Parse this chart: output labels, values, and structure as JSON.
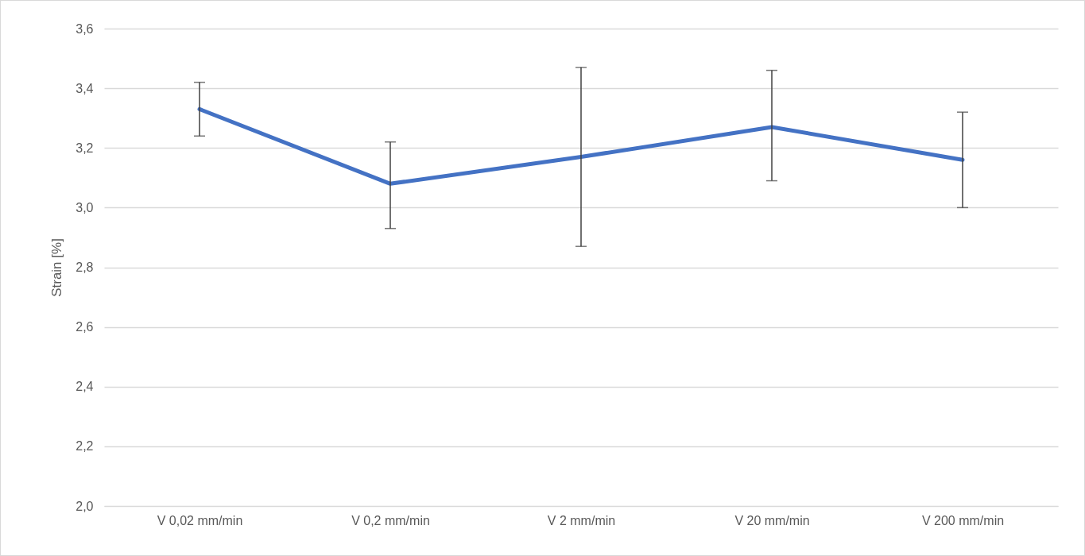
{
  "chart_data": {
    "type": "line",
    "ylabel": "Strain [%]",
    "categories": [
      "V 0,02 mm/min",
      "V 0,2 mm/min",
      "V 2 mm/min",
      "V 20 mm/min",
      "V 200 mm/min"
    ],
    "series": [
      {
        "color": "#4472c4",
        "values": [
          3.33,
          3.08,
          3.17,
          3.27,
          3.16
        ],
        "errors": [
          [
            3.24,
            3.42
          ],
          [
            2.93,
            3.22
          ],
          [
            2.87,
            3.47
          ],
          [
            3.09,
            3.46
          ],
          [
            3.0,
            3.32
          ]
        ]
      }
    ],
    "ylim": [
      2.0,
      3.6
    ],
    "yticks": [
      {
        "value": 2.0,
        "label": "2,0"
      },
      {
        "value": 2.2,
        "label": "2,2"
      },
      {
        "value": 2.4,
        "label": "2,4"
      },
      {
        "value": 2.6,
        "label": "2,6"
      },
      {
        "value": 2.8,
        "label": "2,8"
      },
      {
        "value": 3.0,
        "label": "3,0"
      },
      {
        "value": 3.2,
        "label": "3,2"
      },
      {
        "value": 3.4,
        "label": "3,4"
      },
      {
        "value": 3.6,
        "label": "3,6"
      }
    ],
    "grid": "y",
    "marker": "none",
    "line_style": "solid"
  }
}
